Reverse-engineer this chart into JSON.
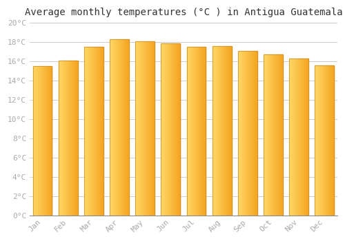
{
  "title": "Average monthly temperatures (°C ) in Antigua Guatemala",
  "months": [
    "Jan",
    "Feb",
    "Mar",
    "Apr",
    "May",
    "Jun",
    "Jul",
    "Aug",
    "Sep",
    "Oct",
    "Nov",
    "Dec"
  ],
  "values": [
    15.5,
    16.1,
    17.5,
    18.3,
    18.1,
    17.9,
    17.5,
    17.6,
    17.1,
    16.7,
    16.3,
    15.6
  ],
  "bar_color_left": "#FFD966",
  "bar_color_right": "#F5A623",
  "bar_edge_color": "#C8862A",
  "ylim": [
    0,
    20
  ],
  "ytick_step": 2,
  "background_color": "#ffffff",
  "grid_color": "#cccccc",
  "title_fontsize": 10,
  "tick_fontsize": 8,
  "tick_color": "#aaaaaa",
  "bar_width": 0.75
}
